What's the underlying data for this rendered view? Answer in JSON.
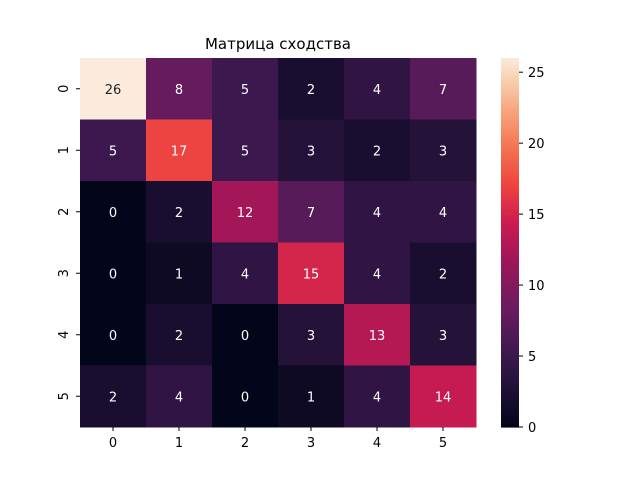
{
  "chart_data": {
    "type": "heatmap",
    "title": "Матрица сходства",
    "xlabel": "",
    "ylabel": "",
    "x_categories": [
      "0",
      "1",
      "2",
      "3",
      "4",
      "5"
    ],
    "y_categories": [
      "0",
      "1",
      "2",
      "3",
      "4",
      "5"
    ],
    "values": [
      [
        26,
        8,
        5,
        2,
        4,
        7
      ],
      [
        5,
        17,
        5,
        3,
        2,
        3
      ],
      [
        0,
        2,
        12,
        7,
        4,
        4
      ],
      [
        0,
        1,
        4,
        15,
        4,
        2
      ],
      [
        0,
        2,
        0,
        3,
        13,
        3
      ],
      [
        2,
        4,
        0,
        1,
        4,
        14
      ]
    ],
    "annotated": true,
    "colormap": "rocket",
    "colorbar": {
      "range": [
        0,
        26
      ],
      "ticks": [
        0,
        5,
        10,
        15,
        20,
        25
      ],
      "tick_labels": [
        "0",
        "5",
        "10",
        "15",
        "20",
        "25"
      ]
    },
    "colors": {
      "low": "#03051a",
      "mid": "#e13342",
      "high": "#faebdd",
      "dark_text": "#262626",
      "light_text": "#ffffff"
    }
  }
}
